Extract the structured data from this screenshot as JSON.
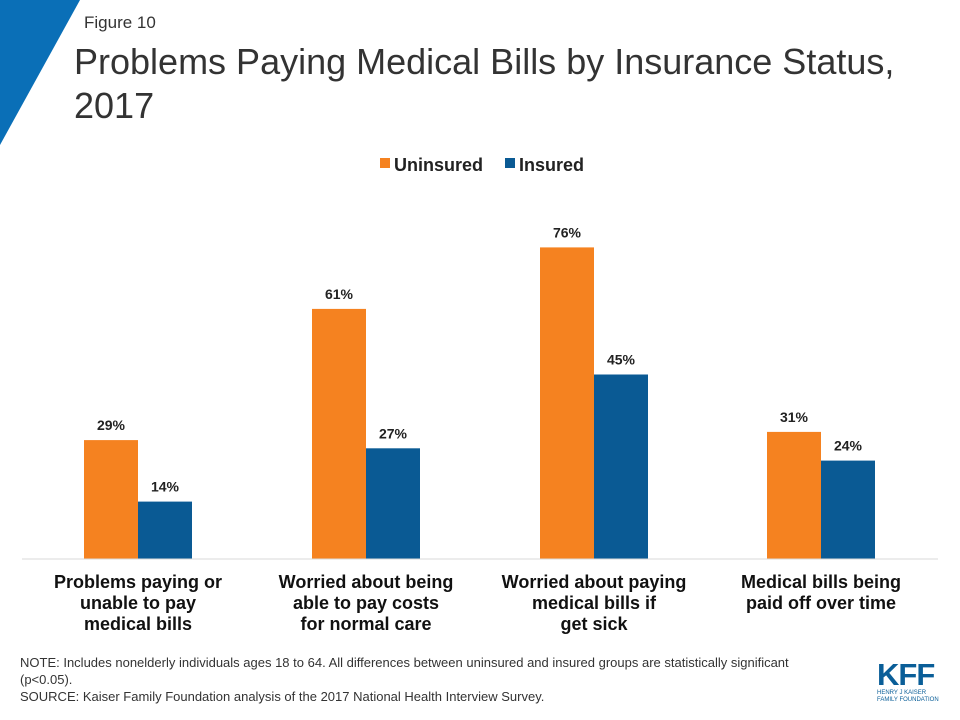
{
  "figure_label": "Figure 10",
  "title": "Problems Paying Medical Bills by Insurance Status, 2017",
  "colors": {
    "uninsured": "#F58220",
    "insured": "#0A5A94",
    "corner": "#0A6FB7",
    "baseline": "#D9D9D9"
  },
  "chart_data": {
    "type": "bar",
    "title": "Problems Paying Medical Bills by Insurance Status, 2017",
    "xlabel": "",
    "ylabel": "",
    "ylim": [
      0,
      100
    ],
    "legend_position": "top-center",
    "categories": [
      [
        "Problems paying or",
        "unable to pay",
        "medical bills"
      ],
      [
        "Worried about being",
        "able to pay costs",
        "for normal care"
      ],
      [
        "Worried about paying",
        "medical bills if",
        "get sick"
      ],
      [
        "Medical bills being",
        "paid off over time"
      ]
    ],
    "series": [
      {
        "name": "Uninsured",
        "values": [
          29,
          61,
          76,
          31
        ],
        "labels": [
          "29%",
          "61%",
          "76%",
          "31%"
        ]
      },
      {
        "name": "Insured",
        "values": [
          14,
          27,
          45,
          24
        ],
        "labels": [
          "14%",
          "27%",
          "45%",
          "24%"
        ]
      }
    ]
  },
  "note": {
    "note_text": "NOTE: Includes nonelderly individuals ages 18 to 64. All differences between uninsured and insured groups are statistically significant (p<0.05).",
    "source_text": "SOURCE: Kaiser Family Foundation analysis of the 2017 National Health Interview Survey."
  },
  "logo": {
    "mark": "KFF",
    "line1": "HENRY J KAISER",
    "line2": "FAMILY FOUNDATION"
  }
}
